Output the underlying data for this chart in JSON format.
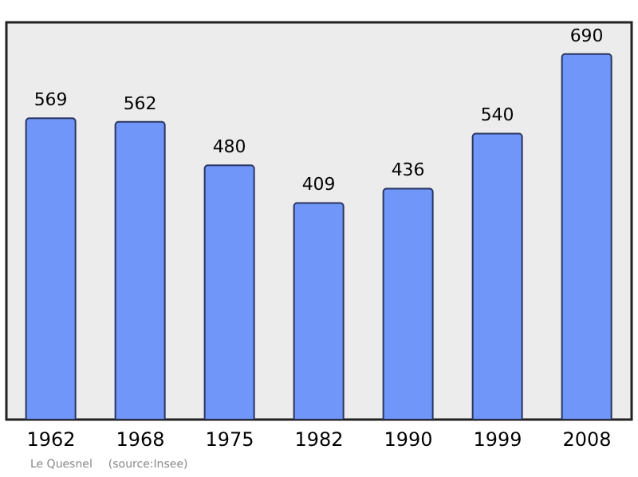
{
  "chart_data": {
    "type": "bar",
    "categories": [
      "1962",
      "1968",
      "1975",
      "1982",
      "1990",
      "1999",
      "2008"
    ],
    "values": [
      569,
      562,
      480,
      409,
      436,
      540,
      690
    ],
    "color": "#6f96f8",
    "data_labels": true,
    "ylim": [
      0,
      750
    ],
    "tick_labels": "x",
    "annotations": [
      "Le Quesnel",
      "(source:Insee)"
    ]
  }
}
